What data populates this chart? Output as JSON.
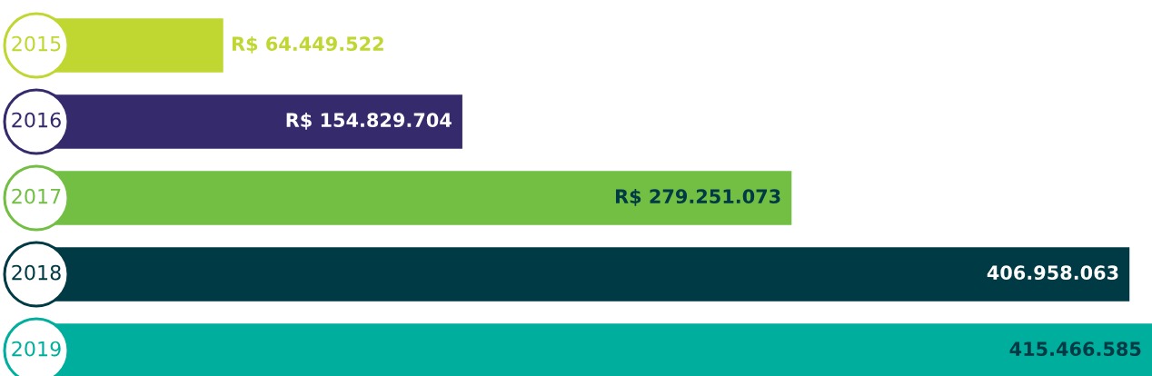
{
  "chart_data": {
    "type": "bar",
    "orientation": "horizontal",
    "categories": [
      "2015",
      "2016",
      "2017",
      "2018",
      "2019"
    ],
    "values": [
      64449522,
      154829704,
      279251073,
      406958063,
      415466585
    ],
    "colors": [
      "#c0d631",
      "#352a6b",
      "#72bf44",
      "#003a44",
      "#00ae9d"
    ],
    "data_labels": true,
    "value_labels": [
      "R$ 64.449.522",
      "R$ 154.829.704",
      "R$ 279.251.073",
      "406.958.063",
      "415.466.585"
    ],
    "xlim": [
      0,
      415466585
    ]
  }
}
